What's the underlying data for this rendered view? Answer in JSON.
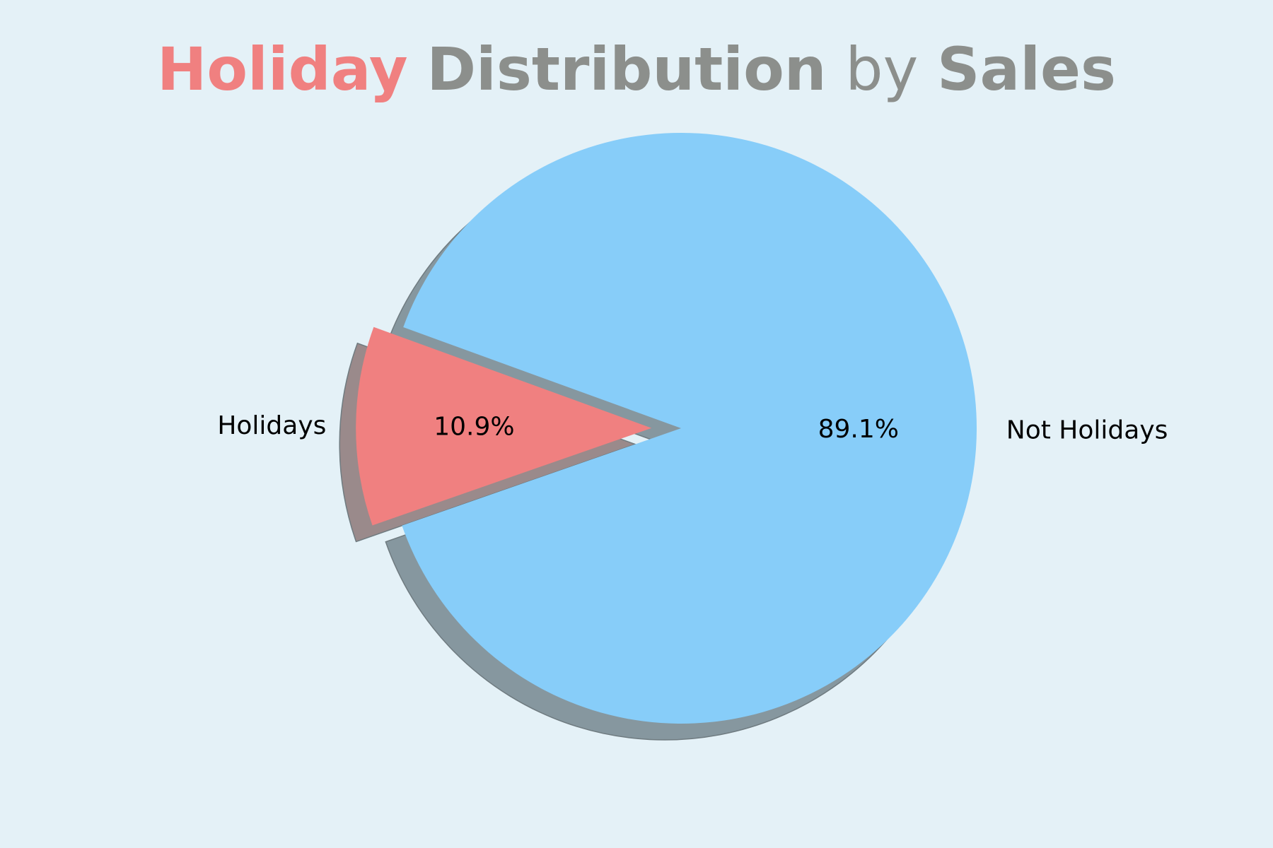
{
  "title": {
    "parts": [
      {
        "text": "Holiday",
        "color": "#f08080",
        "weight": "bold"
      },
      {
        "text": "Distribution",
        "color": "#8c8f8c",
        "weight": "bold"
      },
      {
        "text": "by",
        "color": "#8c8f8c",
        "weight": "normal"
      },
      {
        "text": "Sales",
        "color": "#8c8f8c",
        "weight": "bold"
      }
    ]
  },
  "chart_data": {
    "type": "pie",
    "title": "Holiday Distribution by Sales",
    "slices": [
      {
        "label": "Holidays",
        "value": 10.9,
        "pct_label": "10.9%",
        "color": "#f08080",
        "exploded": true
      },
      {
        "label": "Not Holidays",
        "value": 89.1,
        "pct_label": "89.1%",
        "color": "#87cdf9",
        "exploded": false
      }
    ],
    "shadow": true,
    "shadow_color": "#86979f",
    "background": "#e4f1f7"
  }
}
